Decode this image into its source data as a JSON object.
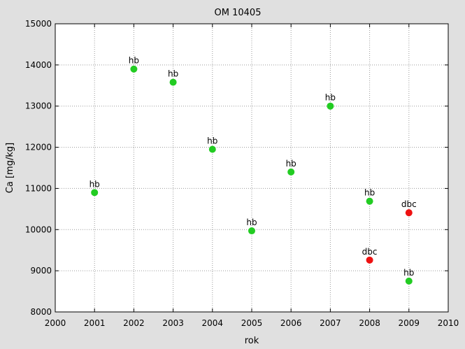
{
  "chart_data": {
    "type": "scatter",
    "title": "OM 10405",
    "xlabel": "rok",
    "ylabel": "Ca [mg/kg]",
    "xlim": [
      2000,
      2010
    ],
    "ylim": [
      8000,
      15000
    ],
    "xticks": [
      2000,
      2001,
      2002,
      2003,
      2004,
      2005,
      2006,
      2007,
      2008,
      2009,
      2010
    ],
    "yticks": [
      8000,
      9000,
      10000,
      11000,
      12000,
      13000,
      14000,
      15000
    ],
    "grid": true,
    "colors": {
      "hb": "#22cc22",
      "dbc": "#ee1111"
    },
    "points": [
      {
        "x": 2001,
        "y": 10900,
        "label": "hb",
        "group": "hb"
      },
      {
        "x": 2002,
        "y": 13900,
        "label": "hb",
        "group": "hb"
      },
      {
        "x": 2003,
        "y": 13580,
        "label": "hb",
        "group": "hb"
      },
      {
        "x": 2004,
        "y": 11950,
        "label": "hb",
        "group": "hb"
      },
      {
        "x": 2005,
        "y": 9970,
        "label": "hb",
        "group": "hb"
      },
      {
        "x": 2006,
        "y": 11400,
        "label": "hb",
        "group": "hb"
      },
      {
        "x": 2007,
        "y": 13000,
        "label": "hb",
        "group": "hb"
      },
      {
        "x": 2008,
        "y": 10690,
        "label": "hb",
        "group": "hb"
      },
      {
        "x": 2008,
        "y": 9260,
        "label": "dbc",
        "group": "dbc"
      },
      {
        "x": 2009,
        "y": 10410,
        "label": "dbc",
        "group": "dbc"
      },
      {
        "x": 2009,
        "y": 8750,
        "label": "hb",
        "group": "hb"
      }
    ]
  }
}
